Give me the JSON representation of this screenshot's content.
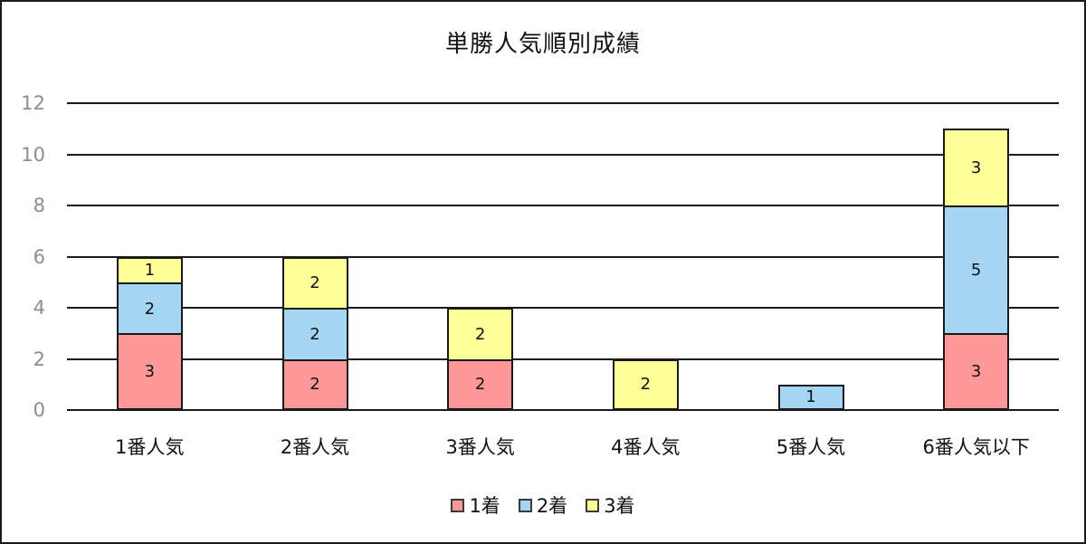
{
  "chart_data": {
    "type": "bar",
    "stacked": true,
    "title": "単勝人気順別成績",
    "categories": [
      "1番人気",
      "2番人気",
      "3番人気",
      "4番人気",
      "5番人気",
      "6番人気以下"
    ],
    "series": [
      {
        "name": "1着",
        "color": "#FF9999",
        "values": [
          3,
          2,
          2,
          0,
          0,
          3
        ]
      },
      {
        "name": "2着",
        "color": "#A4D5F3",
        "values": [
          2,
          2,
          0,
          0,
          1,
          5
        ]
      },
      {
        "name": "3着",
        "color": "#FFFF99",
        "values": [
          1,
          2,
          2,
          2,
          0,
          3
        ]
      }
    ],
    "xlabel": "",
    "ylabel": "",
    "ylim": [
      0,
      12
    ],
    "yticks": [
      0,
      2,
      4,
      6,
      8,
      10,
      12
    ],
    "grid": true,
    "legend_position": "bottom",
    "colors": {
      "grid": "#1a1a1a",
      "tick_label": "#8c8c8c",
      "bar_border": "#1a1a1a",
      "background": "#ffffff"
    }
  }
}
